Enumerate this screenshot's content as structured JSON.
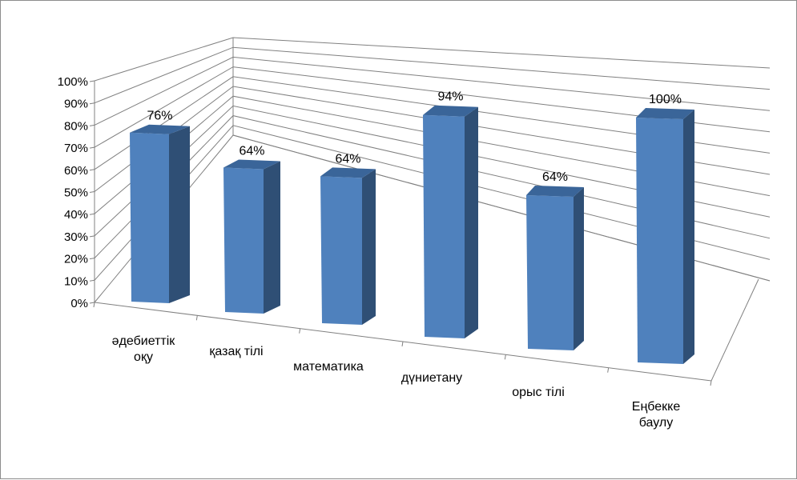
{
  "chart_data": {
    "type": "bar",
    "style": "3d-column",
    "categories": [
      [
        "әдебиеттік",
        "оқу"
      ],
      [
        "қазақ тілі"
      ],
      [
        "математика"
      ],
      [
        "дүниетану"
      ],
      [
        "орыс тілі"
      ],
      [
        "Еңбекке",
        "баулу"
      ]
    ],
    "values": [
      0.76,
      0.64,
      0.64,
      0.94,
      0.64,
      1.0
    ],
    "data_labels": [
      "76%",
      "64%",
      "64%",
      "94%",
      "64%",
      "100%"
    ],
    "ylim": [
      0,
      1
    ],
    "yticks": [
      "0%",
      "10%",
      "20%",
      "30%",
      "40%",
      "50%",
      "60%",
      "70%",
      "80%",
      "90%",
      "100%"
    ],
    "grid": true,
    "legend": "none",
    "colors": {
      "bar_front": "#4F81BD",
      "bar_side": "#2F4F75",
      "bar_top": "#3A6599",
      "grid": "#808080",
      "axis": "#808080"
    }
  }
}
